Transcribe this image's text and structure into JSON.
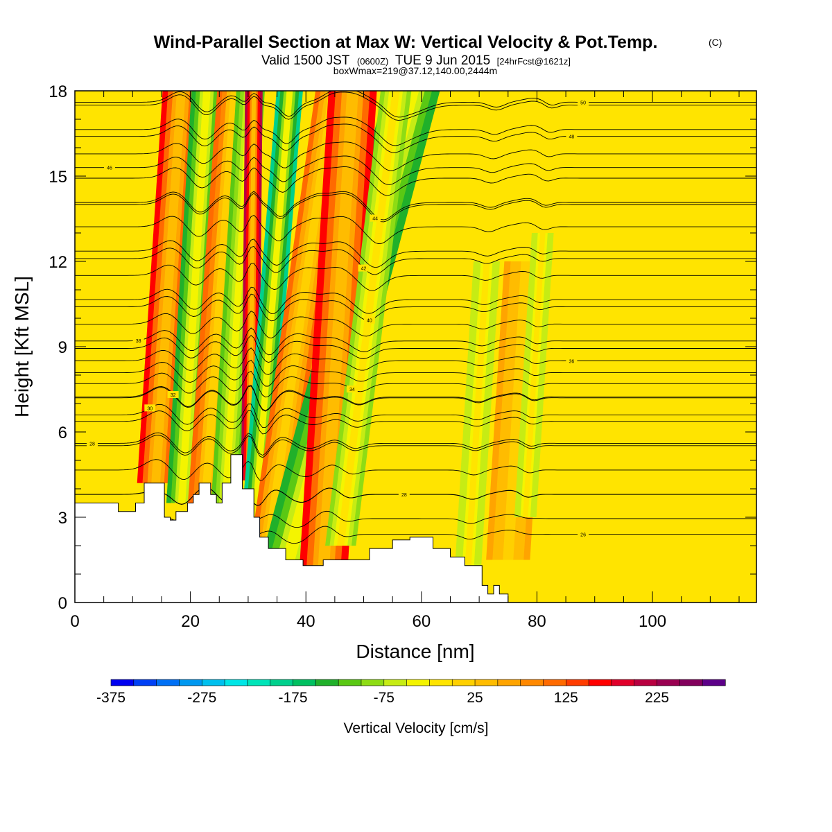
{
  "title": {
    "main": "Wind-Parallel Section at Max W: Vertical Velocity & Pot.Temp.",
    "copyright": "(C)",
    "valid_prefix": "Valid 1500 JST",
    "valid_utc": "(0600Z)",
    "valid_date": "TUE 9 Jun 2015",
    "forecast": "[24hrFcst@1621z]",
    "boxwmax": "boxWmax=219@37.12,140.00,2444m"
  },
  "chart_data": {
    "type": "heatmap",
    "xlabel": "Distance [nm]",
    "ylabel": "Height [Kft MSL]",
    "xlim": [
      0,
      118
    ],
    "ylim": [
      0,
      18
    ],
    "x_ticks": [
      "0",
      "20",
      "40",
      "60",
      "80",
      "100"
    ],
    "y_ticks": [
      "0",
      "3",
      "6",
      "9",
      "12",
      "15",
      "18"
    ],
    "x_tick_values": [
      0,
      20,
      40,
      60,
      80,
      100
    ],
    "y_tick_values": [
      0,
      3,
      6,
      9,
      12,
      15,
      18
    ],
    "x_minor_step": 5,
    "y_minor_step": 1,
    "background_color": "#ffe400",
    "colorbar": {
      "title": "Vertical Velocity [cm/s]",
      "min": -375,
      "max": 275,
      "step": 25,
      "tick_labels": [
        "-375",
        "-275",
        "-175",
        "-75",
        "25",
        "125",
        "225"
      ],
      "tick_values": [
        -375,
        -275,
        -175,
        -75,
        25,
        125,
        225
      ],
      "colors": [
        "#0000f0",
        "#0040f5",
        "#0070f5",
        "#0098f0",
        "#00c0ee",
        "#00e6e6",
        "#00e4b8",
        "#00d08c",
        "#00c060",
        "#20b02a",
        "#5ac814",
        "#8edc14",
        "#c6ec14",
        "#f4f400",
        "#ffe400",
        "#ffd000",
        "#ffbc00",
        "#ffa400",
        "#ff8800",
        "#ff6a00",
        "#ff3c00",
        "#ff0000",
        "#e0002a",
        "#b80040",
        "#990050",
        "#82005c",
        "#5c0088"
      ]
    },
    "updraft_bands": [
      {
        "x_base": 14,
        "slope": 0.32,
        "width": 1.7,
        "w": 150,
        "z_min": 4.2,
        "z_max": 18
      },
      {
        "x_base": 18.5,
        "slope": 0.3,
        "width": 1.4,
        "w": -150,
        "z_min": 3.5,
        "z_max": 18
      },
      {
        "x_base": 22.5,
        "slope": 0.35,
        "width": 1.6,
        "w": 110,
        "z_min": 3.2,
        "z_max": 18
      },
      {
        "x_base": 26,
        "slope": 0.3,
        "width": 1.3,
        "w": -125,
        "z_min": 3.3,
        "z_max": 18
      },
      {
        "x_base": 30.3,
        "slope": 0.05,
        "width": 0.8,
        "w": 219,
        "z_min": 4.3,
        "z_max": 18
      },
      {
        "x_base": 31.2,
        "slope": 0.4,
        "width": 1.2,
        "w": -200,
        "z_min": 3.0,
        "z_max": 18
      },
      {
        "x_base": 33.5,
        "slope": 0.7,
        "width": 1.6,
        "w": 100,
        "z_min": 2.0,
        "z_max": 18
      },
      {
        "x_base": 37,
        "slope": 1.3,
        "width": 2.5,
        "w": -150,
        "z_min": 1.5,
        "z_max": 18
      },
      {
        "x_base": 43,
        "slope": 0.3,
        "width": 2.2,
        "w": 160,
        "z_min": 1.0,
        "z_max": 18
      },
      {
        "x_base": 46,
        "slope": 0.6,
        "width": 1.4,
        "w": -100,
        "z_min": 2.0,
        "z_max": 18
      },
      {
        "x_base": 68,
        "slope": 0.3,
        "width": 1.2,
        "w": -70,
        "z_min": 1.0,
        "z_max": 12
      },
      {
        "x_base": 75,
        "slope": 0.3,
        "width": 2.0,
        "w": 60,
        "z_min": 1.5,
        "z_max": 12
      },
      {
        "x_base": 78,
        "slope": 0.3,
        "width": 1.0,
        "w": -70,
        "z_min": 3.0,
        "z_max": 13
      }
    ],
    "terrain": [
      [
        0,
        3.5
      ],
      [
        7.5,
        3.5
      ],
      [
        7.5,
        3.2
      ],
      [
        10.5,
        3.2
      ],
      [
        10.5,
        3.5
      ],
      [
        12,
        3.5
      ],
      [
        12,
        4.2
      ],
      [
        15.5,
        4.2
      ],
      [
        15.5,
        3.0
      ],
      [
        16.5,
        3.0
      ],
      [
        16.5,
        2.9
      ],
      [
        17.5,
        2.9
      ],
      [
        17.5,
        3.2
      ],
      [
        19.5,
        3.2
      ],
      [
        19.5,
        3.5
      ],
      [
        20.5,
        3.5
      ],
      [
        20.5,
        3.8
      ],
      [
        21.5,
        3.8
      ],
      [
        21.5,
        4.2
      ],
      [
        23.5,
        4.2
      ],
      [
        23.5,
        3.8
      ],
      [
        24.5,
        3.8
      ],
      [
        24.5,
        3.5
      ],
      [
        25.5,
        3.5
      ],
      [
        25.5,
        4.2
      ],
      [
        27,
        4.2
      ],
      [
        27,
        5.2
      ],
      [
        29,
        5.2
      ],
      [
        29,
        4.0
      ],
      [
        31,
        4.0
      ],
      [
        31,
        3.0
      ],
      [
        32,
        3.0
      ],
      [
        32,
        2.3
      ],
      [
        33.5,
        2.3
      ],
      [
        33.5,
        1.9
      ],
      [
        36.5,
        1.9
      ],
      [
        36.5,
        1.5
      ],
      [
        39.5,
        1.5
      ],
      [
        39.5,
        1.3
      ],
      [
        43,
        1.3
      ],
      [
        43,
        1.5
      ],
      [
        51,
        1.5
      ],
      [
        51,
        1.9
      ],
      [
        55,
        1.9
      ],
      [
        55,
        2.2
      ],
      [
        58,
        2.2
      ],
      [
        58,
        2.3
      ],
      [
        62,
        2.3
      ],
      [
        62,
        1.9
      ],
      [
        65,
        1.9
      ],
      [
        65,
        1.6
      ],
      [
        67.5,
        1.6
      ],
      [
        67.5,
        1.3
      ],
      [
        70.5,
        1.3
      ],
      [
        70.5,
        0.6
      ],
      [
        71.5,
        0.6
      ],
      [
        71.5,
        0.3
      ],
      [
        72.5,
        0.3
      ],
      [
        72.5,
        0.6
      ],
      [
        73.5,
        0.6
      ],
      [
        73.5,
        0.3
      ],
      [
        75,
        0.3
      ],
      [
        75,
        0
      ],
      [
        0,
        0
      ]
    ],
    "theta_contours": [
      {
        "label": "26",
        "base_z": 2.4,
        "label_x": 88
      },
      {
        "label": "28",
        "base_z": 3.8,
        "label_x": 57
      },
      {
        "label": "28",
        "base_z": 5.6,
        "label_x": 3
      },
      {
        "label": "30",
        "base_z": 6.6,
        "label_x": 13
      },
      {
        "label": "32",
        "base_z": 7.2,
        "label_x": 17
      },
      {
        "label": "34",
        "base_z": 7.7,
        "label_x": 48
      },
      {
        "label": "36",
        "base_z": 8.5,
        "label_x": 86
      },
      {
        "label": "38",
        "base_z": 9.2,
        "label_x": 11
      },
      {
        "label": "40",
        "base_z": 10.4,
        "label_x": 51
      },
      {
        "label": "42",
        "base_z": 12.1,
        "label_x": 50
      },
      {
        "label": "44",
        "base_z": 14.0,
        "label_x": 52
      },
      {
        "label": "46",
        "base_z": 15.3,
        "label_x": 6
      },
      {
        "label": "48",
        "base_z": 16.4,
        "label_x": 86
      },
      {
        "label": "50",
        "base_z": 17.6,
        "label_x": 88
      }
    ],
    "extra_contour_count": 18
  }
}
